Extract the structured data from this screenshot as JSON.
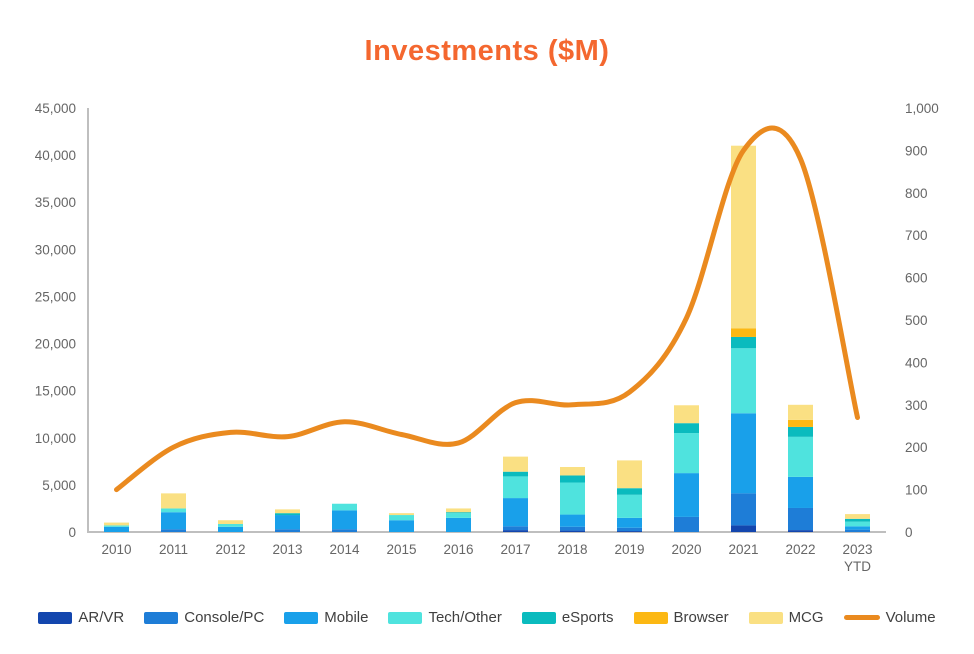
{
  "title": "Investments ($M)",
  "colors": {
    "title": "#F4672F",
    "axis_text": "#666666",
    "axis_line": "#BFBFBF",
    "legend_text": "#404040"
  },
  "chart_data": {
    "type": "bar",
    "subtype": "stacked-bars-with-line",
    "title": "Investments ($M)",
    "grid": false,
    "legend_position": "bottom",
    "categories": [
      "2010",
      "2011",
      "2012",
      "2013",
      "2014",
      "2015",
      "2016",
      "2017",
      "2018",
      "2019",
      "2020",
      "2021",
      "2022",
      "2023 YTD"
    ],
    "left_axis": {
      "min": 0,
      "max": 45000,
      "step": 5000
    },
    "right_axis": {
      "min": 0,
      "max": 1000,
      "step": 100
    },
    "series": [
      {
        "name": "AR/VR",
        "color": "#1346AE",
        "values": [
          0,
          0,
          0,
          0,
          0,
          0,
          0,
          200,
          150,
          100,
          0,
          700,
          200,
          0
        ]
      },
      {
        "name": "Console/PC",
        "color": "#1E7DD7",
        "values": [
          0,
          300,
          0,
          300,
          300,
          0,
          0,
          400,
          400,
          350,
          1600,
          3400,
          2350,
          250
        ]
      },
      {
        "name": "Mobile",
        "color": "#19A0EA",
        "values": [
          550,
          1800,
          550,
          1500,
          2000,
          1250,
          1500,
          3000,
          1300,
          1050,
          4650,
          8500,
          3300,
          350
        ]
      },
      {
        "name": "Tech/Other",
        "color": "#4FE3DE",
        "values": [
          150,
          400,
          300,
          0,
          700,
          550,
          500,
          2300,
          3400,
          2450,
          4250,
          6900,
          4250,
          500
        ]
      },
      {
        "name": "eSports",
        "color": "#0ABBBE",
        "values": [
          0,
          0,
          0,
          200,
          0,
          0,
          100,
          500,
          750,
          700,
          1050,
          1200,
          1050,
          300
        ]
      },
      {
        "name": "Browser",
        "color": "#FCB813",
        "values": [
          0,
          0,
          0,
          0,
          0,
          0,
          0,
          0,
          0,
          0,
          0,
          900,
          750,
          0
        ]
      },
      {
        "name": "MCG",
        "color": "#FAE083",
        "values": [
          300,
          1600,
          400,
          400,
          0,
          200,
          400,
          1600,
          900,
          2950,
          1900,
          19400,
          1600,
          500
        ]
      }
    ],
    "line_series": {
      "name": "Volume",
      "color": "#EA8A1F",
      "axis": "right",
      "values": [
        100,
        200,
        235,
        225,
        260,
        230,
        210,
        305,
        300,
        330,
        505,
        900,
        880,
        270
      ]
    }
  },
  "legend": {
    "items": [
      {
        "label": "AR/VR",
        "color": "#1346AE",
        "type": "swatch"
      },
      {
        "label": "Console/PC",
        "color": "#1E7DD7",
        "type": "swatch"
      },
      {
        "label": "Mobile",
        "color": "#19A0EA",
        "type": "swatch"
      },
      {
        "label": "Tech/Other",
        "color": "#4FE3DE",
        "type": "swatch"
      },
      {
        "label": "eSports",
        "color": "#0ABBBE",
        "type": "swatch"
      },
      {
        "label": "Browser",
        "color": "#FCB813",
        "type": "swatch"
      },
      {
        "label": "MCG",
        "color": "#FAE083",
        "type": "swatch"
      },
      {
        "label": "Volume",
        "color": "#EA8A1F",
        "type": "line"
      }
    ]
  }
}
